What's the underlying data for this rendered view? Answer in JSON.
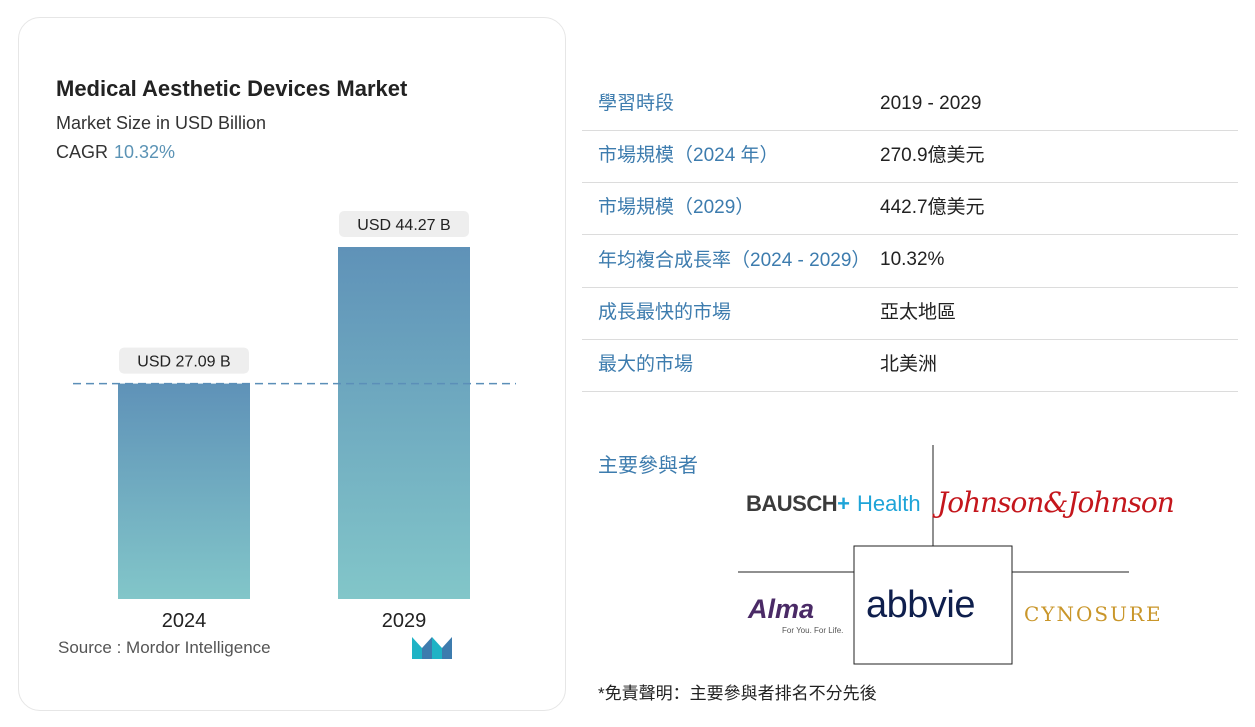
{
  "chart_card": {
    "source_prefix": "Source :",
    "source_name": "Mordor Intelligence",
    "cagr_label": "CAGR",
    "cagr_value": "10.32%"
  },
  "chart_data": {
    "type": "bar",
    "title": "Medical Aesthetic Devices Market",
    "subtitle": "Market Size in USD Billion",
    "categories": [
      "2024",
      "2029"
    ],
    "values": [
      27.09,
      44.27
    ],
    "value_labels": [
      "USD 27.09 B",
      "USD 44.27 B"
    ],
    "reference_line": {
      "value": 27.09,
      "style": "dashed"
    },
    "ylim": [
      0,
      44.27
    ],
    "bar_gradient": {
      "top": "#5f92b8",
      "bottom": "#82c6c9"
    },
    "grid": false,
    "xlabel": "",
    "ylabel": ""
  },
  "facts": [
    {
      "label": "學習時段",
      "value": "2019 - 2029"
    },
    {
      "label": "市場規模（2024 年）",
      "value": "270.9億美元"
    },
    {
      "label": "市場規模（2029）",
      "value": "442.7億美元"
    },
    {
      "label": "年均複合成長率（2024 - 2029）",
      "value": "10.32%"
    },
    {
      "label": "成長最快的市場",
      "value": "亞太地區"
    },
    {
      "label": "最大的市場",
      "value": "北美洲"
    }
  ],
  "players": {
    "label": "主要參與者",
    "logos": {
      "bausch": "BAUSCH",
      "bausch_dash": "+",
      "health": "Health",
      "jnj": "Johnson&Johnson",
      "alma": "Alma",
      "alma_tagline": "For You. For Life.",
      "abbvie": "abbvie",
      "cynosure": "CYNOSURE"
    }
  },
  "disclaimer": "*免責聲明：主要參與者排名不分先後",
  "colors": {
    "accent": "#3d7cae",
    "bar_top": "#5f92b8",
    "bar_bottom": "#82c6c9",
    "reference_line": "#5b8fb8"
  }
}
